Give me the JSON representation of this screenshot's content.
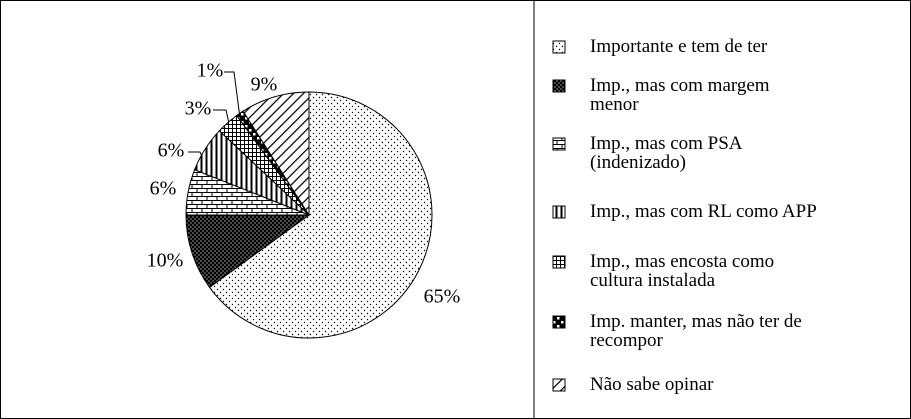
{
  "chart_data": {
    "type": "pie",
    "categories": [
      "Importante e tem de ter",
      "Imp., mas com margem\nmenor",
      "Imp., mas com PSA\n(indenizado)",
      "Imp., mas com RL como APP",
      "Imp., mas encosta como\ncultura instalada",
      "Imp. manter, mas não ter de\nrecompor",
      "Não sabe opinar"
    ],
    "values": [
      65,
      10,
      6,
      6,
      3,
      1,
      9
    ],
    "value_labels": [
      "65%",
      "10%",
      "6%",
      "6%",
      "3%",
      "1%",
      "9%"
    ]
  }
}
